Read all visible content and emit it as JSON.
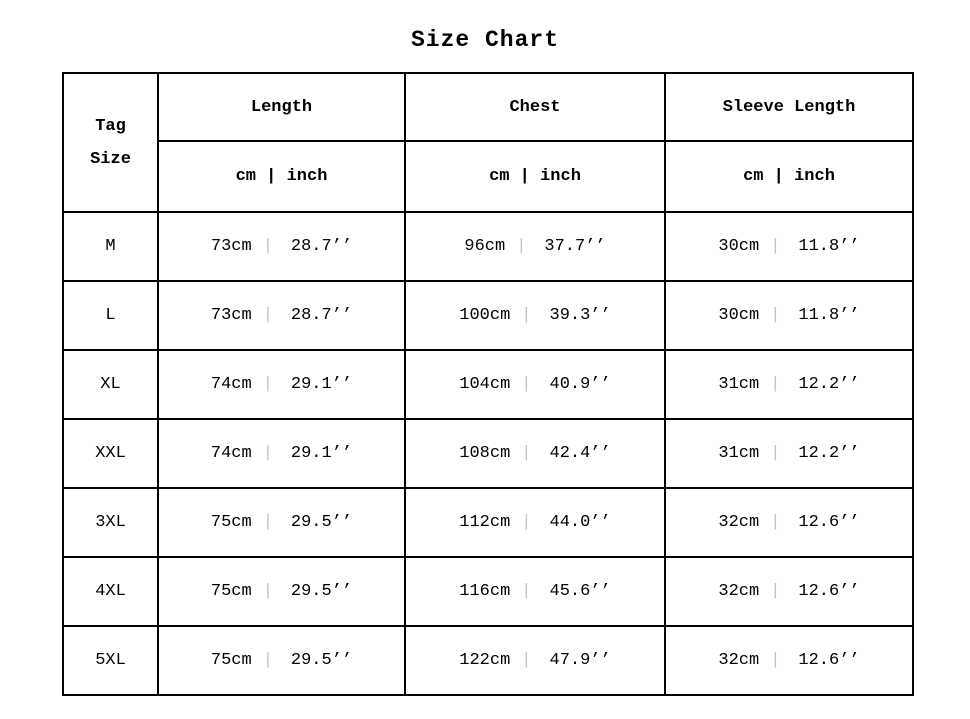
{
  "title": "Size Chart",
  "table": {
    "corner": {
      "line1": "Tag",
      "line2": "Size"
    },
    "sep": "|",
    "columns": [
      {
        "label": "Length",
        "units": "cm | inch"
      },
      {
        "label": "Chest",
        "units": "cm | inch"
      },
      {
        "label": "Sleeve Length",
        "units": "cm | inch"
      }
    ],
    "rows": [
      {
        "size": "M",
        "length": {
          "cm": "73cm",
          "inch": "28.7’’"
        },
        "chest": {
          "cm": "96cm",
          "inch": "37.7’’"
        },
        "sleeve": {
          "cm": "30cm",
          "inch": "11.8’’"
        }
      },
      {
        "size": "L",
        "length": {
          "cm": "73cm",
          "inch": "28.7’’"
        },
        "chest": {
          "cm": "100cm",
          "inch": "39.3’’"
        },
        "sleeve": {
          "cm": "30cm",
          "inch": "11.8’’"
        }
      },
      {
        "size": "XL",
        "length": {
          "cm": "74cm",
          "inch": "29.1’’"
        },
        "chest": {
          "cm": "104cm",
          "inch": "40.9’’"
        },
        "sleeve": {
          "cm": "31cm",
          "inch": "12.2’’"
        }
      },
      {
        "size": "XXL",
        "length": {
          "cm": "74cm",
          "inch": "29.1’’"
        },
        "chest": {
          "cm": "108cm",
          "inch": "42.4’’"
        },
        "sleeve": {
          "cm": "31cm",
          "inch": "12.2’’"
        }
      },
      {
        "size": "3XL",
        "length": {
          "cm": "75cm",
          "inch": "29.5’’"
        },
        "chest": {
          "cm": "112cm",
          "inch": "44.0’’"
        },
        "sleeve": {
          "cm": "32cm",
          "inch": "12.6’’"
        }
      },
      {
        "size": "4XL",
        "length": {
          "cm": "75cm",
          "inch": "29.5’’"
        },
        "chest": {
          "cm": "116cm",
          "inch": "45.6’’"
        },
        "sleeve": {
          "cm": "32cm",
          "inch": "12.6’’"
        }
      },
      {
        "size": "5XL",
        "length": {
          "cm": "75cm",
          "inch": "29.5’’"
        },
        "chest": {
          "cm": "122cm",
          "inch": "47.9’’"
        },
        "sleeve": {
          "cm": "32cm",
          "inch": "12.6’’"
        }
      }
    ]
  },
  "chart_data": {
    "type": "table",
    "title": "Size Chart",
    "columns": [
      "Tag Size",
      "Length (cm)",
      "Length (inch)",
      "Chest (cm)",
      "Chest (inch)",
      "Sleeve Length (cm)",
      "Sleeve Length (inch)"
    ],
    "rows": [
      [
        "M",
        73,
        28.7,
        96,
        37.7,
        30,
        11.8
      ],
      [
        "L",
        73,
        28.7,
        100,
        39.3,
        30,
        11.8
      ],
      [
        "XL",
        74,
        29.1,
        104,
        40.9,
        31,
        12.2
      ],
      [
        "XXL",
        74,
        29.1,
        108,
        42.4,
        31,
        12.2
      ],
      [
        "3XL",
        75,
        29.5,
        112,
        44.0,
        32,
        12.6
      ],
      [
        "4XL",
        75,
        29.5,
        116,
        45.6,
        32,
        12.6
      ],
      [
        "5XL",
        75,
        29.5,
        122,
        47.9,
        32,
        12.6
      ]
    ]
  }
}
